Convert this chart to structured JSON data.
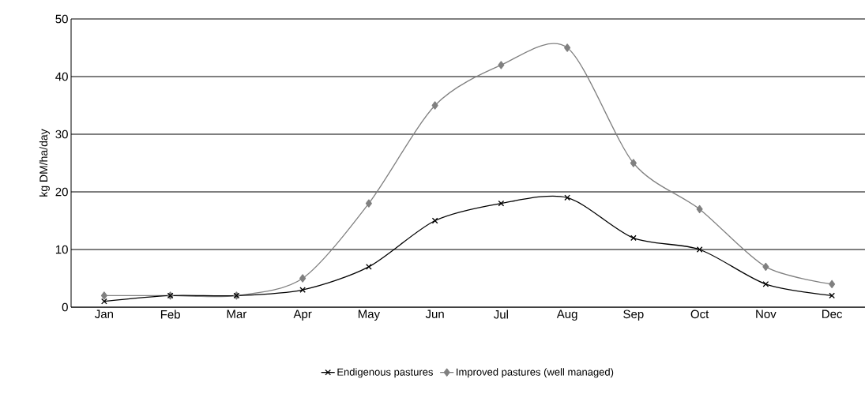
{
  "chart_data": {
    "type": "line",
    "ylabel": "kg DM/ha/day",
    "categories": [
      "Jan",
      "Feb",
      "Mar",
      "Apr",
      "May",
      "Jun",
      "Jul",
      "Aug",
      "Sep",
      "Oct",
      "Nov",
      "Dec"
    ],
    "series": [
      {
        "name": "Endigenous pastures",
        "color": "#000000",
        "marker": "cross",
        "values": [
          1,
          2,
          2,
          3,
          7,
          15,
          18,
          19,
          12,
          10,
          4,
          2
        ]
      },
      {
        "name": "Improved pastures (well managed)",
        "color": "#808080",
        "marker": "diamond",
        "values": [
          2,
          2,
          2,
          5,
          18,
          35,
          42,
          45,
          25,
          17,
          7,
          4
        ]
      }
    ],
    "ylim": [
      0,
      50
    ],
    "yticks": [
      0,
      10,
      20,
      30,
      40,
      50
    ],
    "grid": "y",
    "legend": "bottom",
    "line_style": "solid"
  }
}
